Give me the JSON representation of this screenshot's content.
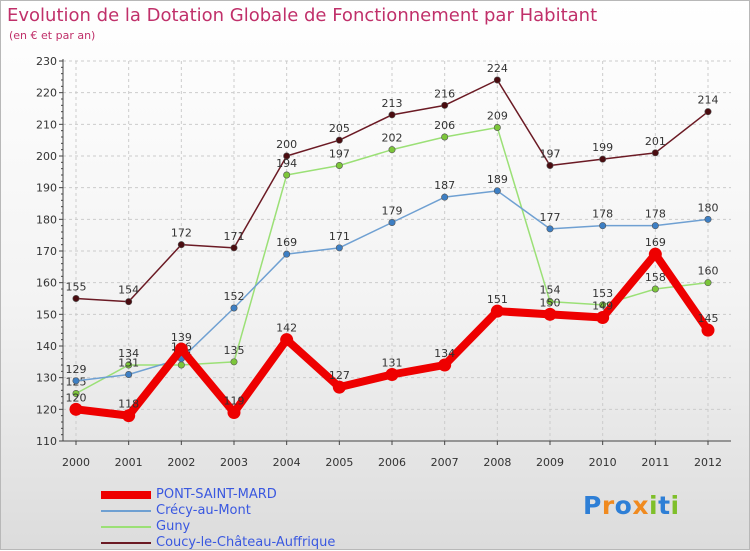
{
  "header": {
    "title": "Evolution de la Dotation Globale de Fonctionnement par Habitant",
    "subtitle": "(en € et par an)"
  },
  "logo": {
    "text": "Proxiti",
    "colors": [
      "#2e7fd6",
      "#f08a1f",
      "#2e7fd6",
      "#f08a1f",
      "#7fbf2a",
      "#2e7fd6",
      "#7fbf2a"
    ]
  },
  "chart_data": {
    "type": "line",
    "categories": [
      "2000",
      "2001",
      "2002",
      "2003",
      "2004",
      "2005",
      "2006",
      "2007",
      "2008",
      "2009",
      "2010",
      "2011",
      "2012"
    ],
    "ylim": [
      110,
      230
    ],
    "yticks": [
      110,
      120,
      130,
      140,
      150,
      160,
      170,
      180,
      190,
      200,
      210,
      220,
      230
    ],
    "grid": true,
    "legend_position": "bottom-left",
    "series": [
      {
        "name": "Coucy-le-Château-Auffrique",
        "color": "#6b1a24",
        "marker": "#4a0c10",
        "values": [
          155,
          154,
          172,
          171,
          200,
          205,
          213,
          216,
          224,
          197,
          199,
          201,
          214
        ]
      },
      {
        "name": "Guny",
        "color": "#9be076",
        "marker": "#7cc63a",
        "values": [
          125,
          134,
          134,
          135,
          194,
          197,
          202,
          206,
          209,
          154,
          153,
          158,
          160
        ]
      },
      {
        "name": "Crécy-au-Mont",
        "color": "#6fa0d2",
        "marker": "#3d7fc4",
        "values": [
          129,
          131,
          136,
          152,
          169,
          171,
          179,
          187,
          189,
          177,
          178,
          178,
          180
        ]
      },
      {
        "name": "PONT-SAINT-MARD",
        "color": "#ee0000",
        "marker": "#ee0000",
        "values": [
          120,
          118,
          139,
          119,
          142,
          127,
          131,
          134,
          151,
          150,
          149,
          169,
          145
        ]
      }
    ]
  }
}
